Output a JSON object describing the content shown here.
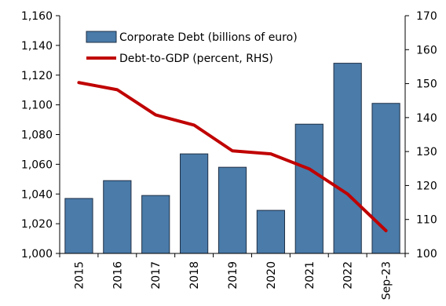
{
  "chart_data": {
    "type": "bar",
    "categories": [
      "2015",
      "2016",
      "2017",
      "2018",
      "2019",
      "2020",
      "2021",
      "2022",
      "Sep-23"
    ],
    "series": [
      {
        "name": "Corporate Debt (billions of euro)",
        "type": "bar",
        "axis": "left",
        "color": "#4a7ba9",
        "values": [
          1037,
          1049,
          1039,
          1067,
          1058,
          1029,
          1087,
          1128,
          1101
        ]
      },
      {
        "name": "Debt-to-GDP (percent, RHS)",
        "type": "line",
        "axis": "right",
        "color": "#c00000",
        "values": [
          150.3,
          148.2,
          140.8,
          137.8,
          130.2,
          129.3,
          124.9,
          117.5,
          106.7
        ]
      }
    ],
    "left_axis": {
      "ylim": [
        1000,
        1160
      ],
      "ticks": [
        1000,
        1020,
        1040,
        1060,
        1080,
        1100,
        1120,
        1140,
        1160
      ],
      "tick_labels": [
        "1,000",
        "1,020",
        "1,040",
        "1,060",
        "1,080",
        "1,100",
        "1,120",
        "1,140",
        "1,160"
      ]
    },
    "right_axis": {
      "ylim": [
        100,
        170
      ],
      "ticks": [
        100,
        110,
        120,
        130,
        140,
        150,
        160,
        170
      ],
      "tick_labels": [
        "100",
        "110",
        "120",
        "130",
        "140",
        "150",
        "160",
        "170"
      ]
    },
    "grid": false,
    "legend_position": "top-left",
    "title": "",
    "xlabel": "",
    "ylabel": ""
  }
}
